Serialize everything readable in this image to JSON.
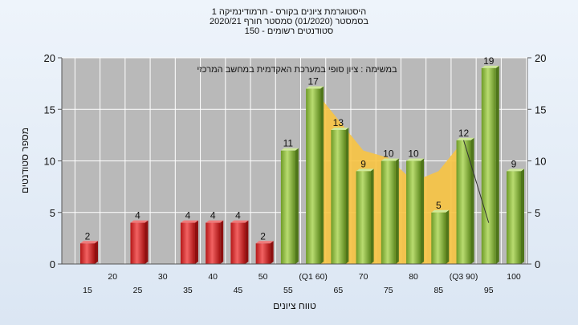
{
  "title_lines": [
    "היסטוגרמת ציונים בקורס - תרמודינמיקה 1",
    "בסמסטר  (01/2020)  סמסטר חורף  2020/21",
    "סטודנטים רשומים - 150"
  ],
  "chart_data": {
    "type": "bar",
    "annotation": "במשימה : ציון סופי במערכת האקדמית במחשב המרכזי",
    "xlabel": "טווח ציונים",
    "ylabel": "מספר סטודנטים",
    "ylim": [
      0,
      20
    ],
    "yticks": [
      0,
      5,
      10,
      15,
      20
    ],
    "grid": true,
    "categories": [
      "15",
      "20",
      "25",
      "30",
      "35",
      "40",
      "45",
      "50",
      "55",
      "(Q1 60)",
      "65",
      "70",
      "75",
      "80",
      "85",
      "(Q3 90)",
      "95",
      "100"
    ],
    "values": [
      2,
      null,
      4,
      null,
      4,
      4,
      4,
      2,
      11,
      17,
      13,
      9,
      10,
      10,
      5,
      12,
      19,
      9
    ],
    "bar_colors": [
      "#dd2e2e",
      null,
      "#dd2e2e",
      null,
      "#dd2e2e",
      "#dd2e2e",
      "#dd2e2e",
      "#dd2e2e",
      "#8fbf3e",
      "#8fbf3e",
      "#8fbf3e",
      "#8fbf3e",
      "#8fbf3e",
      "#8fbf3e",
      "#8fbf3e",
      "#8fbf3e",
      "#8fbf3e",
      "#8fbf3e"
    ],
    "area_series": {
      "x_start": "(Q1 60)",
      "x_end": "(Q3 90)",
      "values": [
        17,
        14,
        11,
        10.3,
        8,
        9,
        12
      ],
      "color": "#f8c442"
    },
    "line_series": {
      "x": [
        "(Q3 90)",
        "95"
      ],
      "values": [
        12,
        4
      ],
      "color": "#333333"
    },
    "colors": {
      "plot_bg": "#b9b9b9",
      "grid": "#ffffff"
    }
  }
}
